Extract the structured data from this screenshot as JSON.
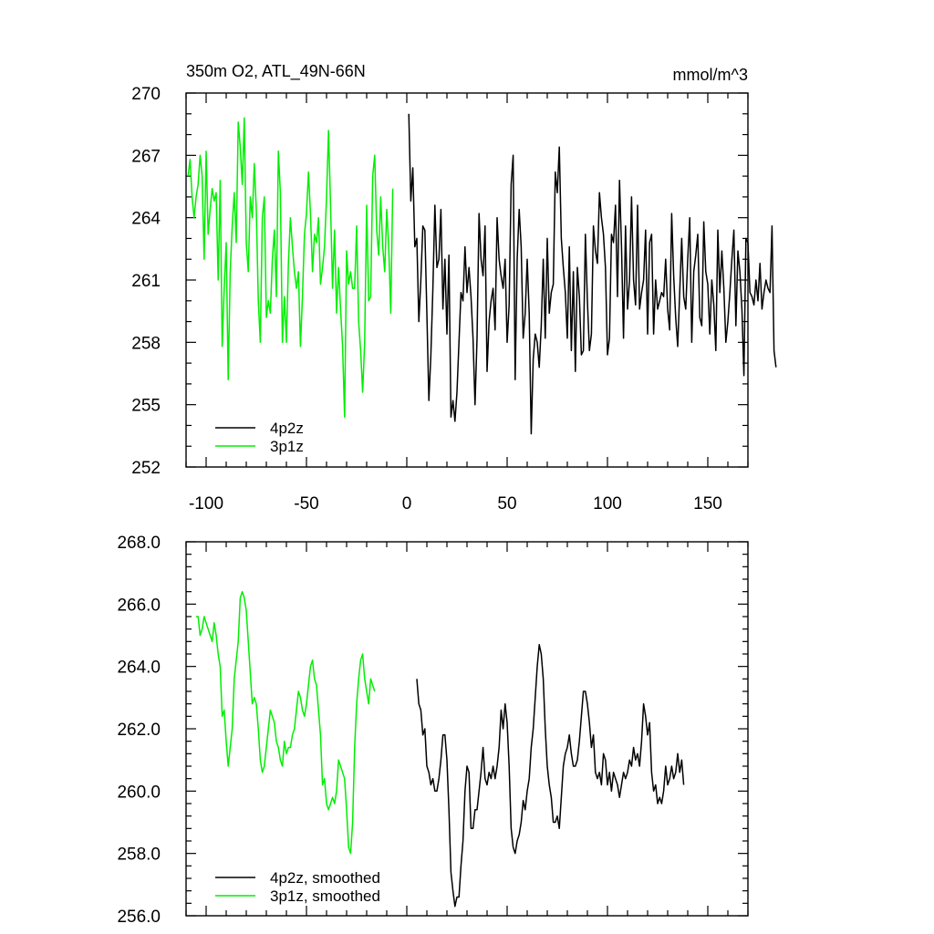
{
  "chart_data": [
    {
      "type": "line",
      "title": "350m O2, ATL_49N-66N",
      "units": "mmol/m^3",
      "xlabel": "",
      "ylabel": "",
      "xlim": [
        -110,
        170
      ],
      "ylim": [
        252,
        270
      ],
      "xticks": [
        -100,
        -50,
        0,
        50,
        100,
        150
      ],
      "xtick_labels": [
        "-100",
        "-50",
        "0",
        "50",
        "100",
        "150"
      ],
      "yticks": [
        252,
        255,
        258,
        261,
        264,
        267,
        270
      ],
      "ytick_labels": [
        "252",
        "255",
        "258",
        "261",
        "264",
        "267",
        "270"
      ],
      "grid": false,
      "legend": "bottom-left",
      "series": [
        {
          "name": "4p2z",
          "color": "#000000",
          "x_start": 1,
          "x_step": 1,
          "values": [
            269.0,
            264.8,
            266.4,
            262.6,
            263.0,
            259.0,
            261.0,
            263.6,
            263.4,
            259.4,
            255.2,
            257.4,
            260.6,
            264.6,
            261.6,
            262.0,
            264.4,
            259.6,
            262.0,
            258.4,
            262.2,
            254.4,
            255.2,
            254.2,
            255.6,
            258.0,
            260.4,
            260.0,
            262.6,
            260.4,
            261.6,
            260.2,
            258.2,
            255.0,
            258.2,
            264.2,
            262.0,
            261.2,
            263.6,
            256.6,
            259.0,
            260.0,
            260.6,
            258.6,
            264.0,
            262.0,
            261.2,
            260.6,
            262.0,
            258.0,
            259.8,
            265.6,
            267.0,
            256.2,
            262.0,
            264.4,
            262.6,
            258.2,
            259.4,
            262.0,
            259.4,
            253.6,
            257.2,
            258.4,
            258.0,
            256.8,
            258.8,
            262.0,
            258.2,
            263.0,
            259.4,
            260.4,
            260.8,
            266.2,
            265.2,
            267.4,
            263.0,
            261.6,
            260.4,
            258.2,
            262.6,
            257.6,
            261.4,
            256.6,
            261.6,
            260.2,
            257.4,
            257.6,
            263.2,
            260.0,
            257.6,
            258.4,
            263.6,
            262.4,
            261.8,
            265.2,
            264.0,
            263.2,
            261.6,
            257.4,
            258.2,
            263.2,
            262.8,
            264.6,
            260.2,
            265.8,
            262.6,
            258.2,
            263.6,
            259.6,
            261.0,
            265.0,
            261.0,
            259.8,
            264.6,
            259.6,
            260.4,
            261.0,
            263.4,
            258.4,
            262.8,
            263.2,
            258.4,
            261.0,
            259.6,
            260.0,
            260.4,
            260.2,
            262.0,
            259.6,
            258.6,
            264.2,
            261.2,
            259.2,
            257.8,
            260.4,
            263.0,
            260.2,
            259.6,
            262.0,
            264.0,
            258.0,
            261.4,
            262.2,
            263.2,
            259.2,
            258.8,
            263.8,
            261.4,
            260.8,
            258.4,
            261.0,
            259.8,
            257.6,
            263.4,
            260.4,
            262.4,
            260.6,
            258.0,
            259.0,
            260.4,
            262.0,
            263.4,
            258.8,
            262.4,
            261.4,
            259.6,
            256.4,
            263.0,
            262.8,
            260.4,
            260.2,
            259.8,
            261.0,
            260.0,
            261.8,
            259.6,
            260.4,
            261.0,
            260.6,
            260.4,
            263.6,
            257.6,
            256.8
          ]
        },
        {
          "name": "3p1z",
          "color": "#00ee00",
          "x_start": -109,
          "x_step": 1,
          "values": [
            266.0,
            266.8,
            265.0,
            264.0,
            265.0,
            265.6,
            267.0,
            266.0,
            262.0,
            267.2,
            263.2,
            264.4,
            265.4,
            264.8,
            265.2,
            261.0,
            265.8,
            257.8,
            260.6,
            262.8,
            256.2,
            261.4,
            263.6,
            265.2,
            262.8,
            268.6,
            267.4,
            265.6,
            268.8,
            262.8,
            261.4,
            265.0,
            264.0,
            266.6,
            264.4,
            260.0,
            258.0,
            264.0,
            265.0,
            259.2,
            260.0,
            259.4,
            262.0,
            263.4,
            260.2,
            267.2,
            265.2,
            258.0,
            260.2,
            258.0,
            261.8,
            264.0,
            262.6,
            261.4,
            260.6,
            261.4,
            257.8,
            260.2,
            263.2,
            264.2,
            266.2,
            264.2,
            261.4,
            263.2,
            262.8,
            264.0,
            260.8,
            261.6,
            262.6,
            265.0,
            268.2,
            264.6,
            260.6,
            263.4,
            259.4,
            261.6,
            259.6,
            257.8,
            254.4,
            262.4,
            260.8,
            261.4,
            260.6,
            260.6,
            263.6,
            259.0,
            257.6,
            255.6,
            258.0,
            264.6,
            260.0,
            260.2,
            266.0,
            267.0,
            263.4,
            262.2,
            265.0,
            262.6,
            261.4,
            264.4,
            262.6,
            259.4,
            265.4
          ]
        }
      ]
    },
    {
      "type": "line",
      "title": "",
      "xlabel": "",
      "ylabel": "",
      "xlim": [
        -110,
        170
      ],
      "ylim": [
        256,
        268
      ],
      "yticks": [
        256,
        258,
        260,
        262,
        264,
        266,
        268
      ],
      "ytick_labels": [
        "256.0",
        "258.0",
        "260.0",
        "262.0",
        "264.0",
        "266.0",
        "268.0"
      ],
      "grid": false,
      "legend": "bottom-left",
      "series": [
        {
          "name": "4p2z, smoothed",
          "color": "#000000",
          "x_start": 5,
          "x_step": 1,
          "values": [
            263.6,
            262.8,
            262.6,
            261.8,
            262.0,
            260.8,
            260.6,
            260.2,
            260.4,
            260.0,
            260.0,
            260.4,
            261.0,
            261.8,
            261.8,
            261.0,
            259.4,
            257.4,
            256.8,
            256.3,
            256.6,
            256.6,
            257.6,
            258.4,
            260.0,
            260.8,
            260.6,
            258.8,
            258.8,
            259.4,
            259.4,
            260.0,
            260.6,
            261.4,
            260.4,
            260.2,
            260.6,
            260.4,
            260.8,
            260.4,
            260.8,
            261.4,
            262.6,
            262.0,
            262.8,
            262.2,
            260.8,
            258.8,
            258.2,
            258.0,
            258.4,
            258.6,
            259.0,
            259.7,
            259.4,
            260.0,
            260.4,
            261.4,
            262.0,
            263.0,
            264.0,
            264.7,
            264.4,
            263.6,
            262.0,
            260.8,
            260.2,
            259.8,
            259.0,
            259.0,
            259.2,
            258.8,
            259.8,
            260.8,
            261.2,
            261.4,
            261.8,
            261.2,
            260.8,
            260.8,
            261.0,
            261.6,
            262.4,
            263.2,
            263.2,
            262.8,
            262.2,
            261.4,
            261.8,
            260.6,
            260.4,
            260.6,
            260.2,
            261.2,
            261.0,
            260.2,
            260.6,
            260.0,
            260.6,
            260.4,
            260.2,
            259.8,
            260.2,
            260.6,
            260.4,
            260.6,
            261.0,
            260.8,
            261.4,
            261.0,
            261.2,
            260.8,
            261.6,
            262.8,
            262.4,
            261.8,
            262.2,
            260.6,
            260.0,
            260.2,
            259.6,
            259.8,
            259.6,
            260.0,
            260.8,
            260.2,
            260.4,
            260.8,
            260.4,
            260.6,
            261.2,
            260.6,
            261.0,
            260.2
          ]
        },
        {
          "name": "3p1z, smoothed",
          "color": "#00ee00",
          "x_start": -105,
          "x_step": 1,
          "values": [
            265.6,
            265.6,
            265.0,
            265.2,
            265.6,
            265.4,
            265.2,
            265.0,
            264.8,
            265.4,
            265.0,
            264.4,
            264.0,
            262.4,
            262.6,
            261.6,
            260.8,
            261.4,
            262.0,
            263.6,
            264.2,
            264.8,
            266.2,
            266.4,
            266.2,
            265.8,
            264.8,
            263.8,
            262.8,
            263.0,
            262.8,
            262.0,
            261.0,
            260.6,
            260.8,
            261.4,
            262.0,
            262.6,
            262.4,
            262.2,
            261.6,
            261.4,
            261.0,
            260.8,
            261.6,
            261.2,
            261.4,
            261.4,
            261.8,
            262.0,
            262.6,
            263.2,
            263.0,
            262.6,
            262.4,
            262.8,
            263.4,
            264.0,
            264.2,
            263.6,
            263.4,
            262.6,
            261.8,
            260.2,
            260.4,
            259.6,
            259.4,
            259.6,
            259.8,
            259.6,
            260.0,
            261.0,
            260.8,
            260.6,
            260.4,
            259.4,
            258.2,
            258.0,
            259.0,
            261.4,
            262.8,
            263.6,
            264.2,
            264.4,
            263.6,
            263.2,
            262.8,
            263.6,
            263.4,
            263.2
          ]
        }
      ]
    }
  ]
}
